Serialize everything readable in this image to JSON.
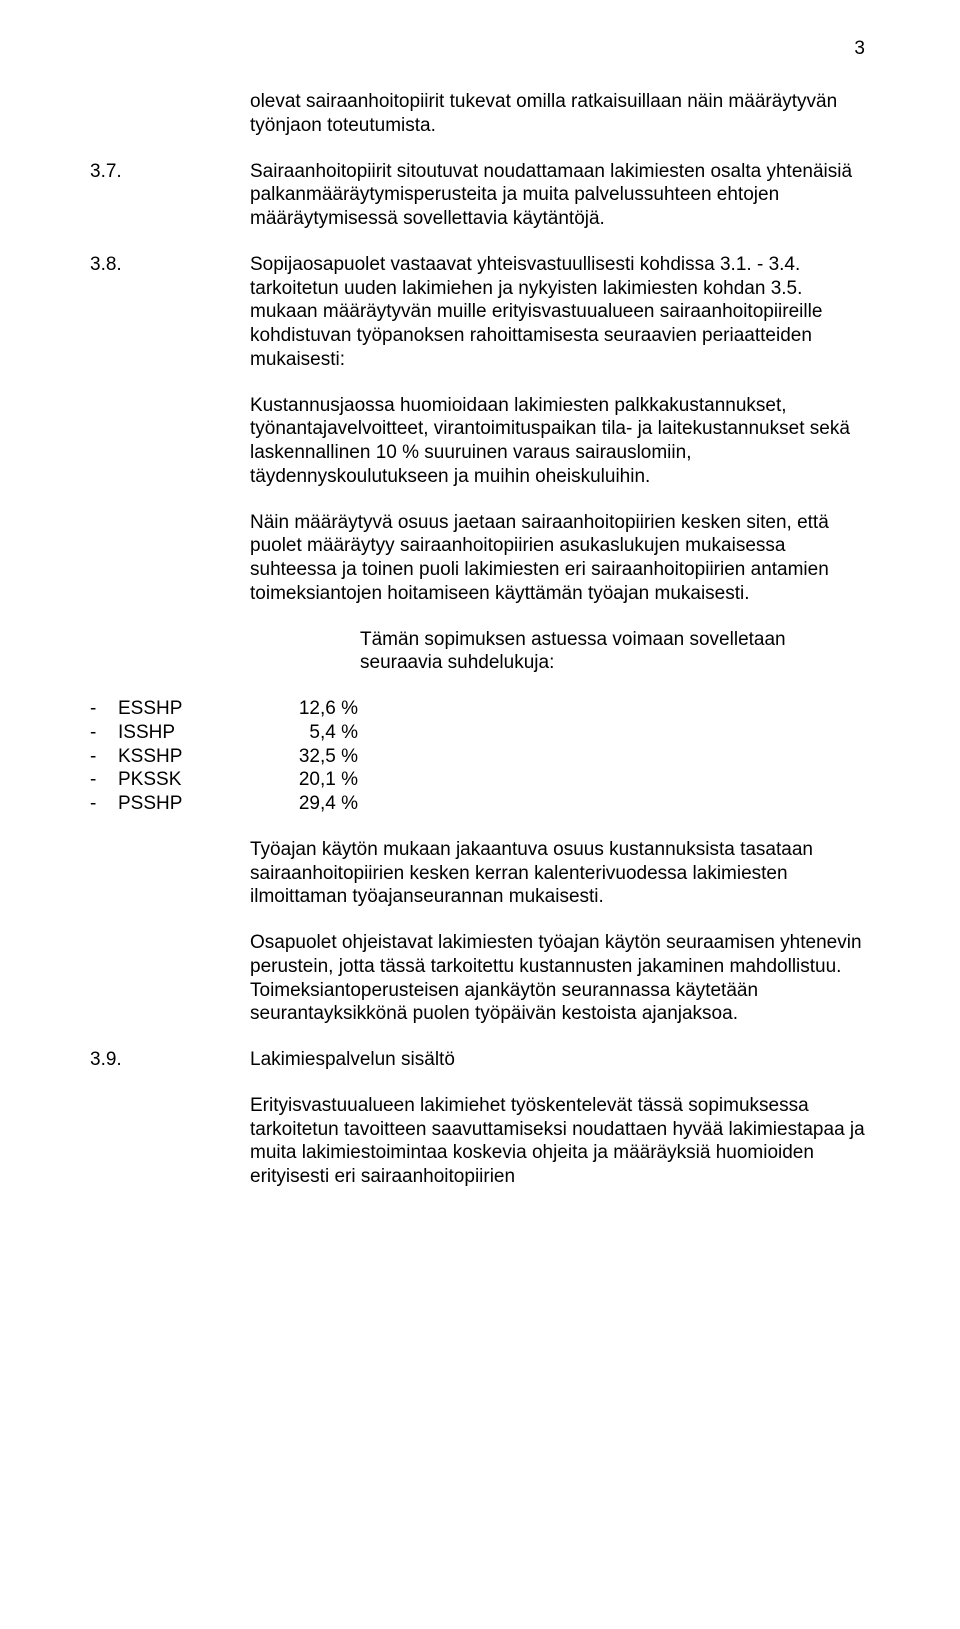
{
  "pageNumber": "3",
  "paragraphs": {
    "p1": "olevat sairaanhoitopiirit tukevat omilla ratkaisuillaan näin määräytyvän työnjaon toteutumista.",
    "p2_num": "3.7.",
    "p2": "Sairaanhoitopiirit sitoutuvat noudattamaan lakimiesten osalta yhtenäisiä palkanmääräytymisperusteita ja muita palvelussuhteen ehtojen määräytymisessä sovellettavia käytäntöjä.",
    "p3_num": "3.8.",
    "p3": "Sopijaosapuolet vastaavat yhteisvastuullisesti kohdissa 3.1. - 3.4. tarkoitetun uuden lakimiehen ja nykyisten lakimiesten kohdan 3.5. mukaan määräytyvän muille erityisvastuualueen sairaanhoitopiireille kohdistuvan työpanoksen rahoittamisesta seuraavien periaatteiden mukaisesti:",
    "p4": "Kustannusjaossa huomioidaan lakimiesten palkkakustannukset, työnantajavelvoitteet, virantoimituspaikan tila- ja laitekustannukset sekä laskennallinen 10 % suuruinen varaus sairauslomiin, täydennyskoulutukseen ja muihin oheiskuluihin.",
    "p5": "Näin määräytyvä osuus jaetaan sairaanhoitopiirien kesken siten, että puolet määräytyy sairaanhoitopiirien asukaslukujen mukaisessa suhteessa ja toinen puoli lakimiesten eri sairaanhoitopiirien antamien toimeksiantojen hoitamiseen käyttämän työajan mukaisesti.",
    "p6": "Tämän sopimuksen astuessa voimaan sovelletaan seuraavia suhdelukuja:",
    "p7": "Työajan käytön mukaan jakaantuva osuus kustannuksista tasataan sairaanhoitopiirien kesken kerran kalenterivuodessa lakimiesten ilmoittaman työajanseurannan mukaisesti.",
    "p8": "Osapuolet ohjeistavat lakimiesten työajan käytön seuraamisen yhtenevin perustein, jotta tässä tarkoitettu kustannusten jakaminen mahdollistuu. Toimeksiantoperusteisen ajankäytön seurannassa käytetään seurantayksikkönä puolen työpäivän kestoista ajanjaksoa.",
    "p9_num": "3.9.",
    "p9_title": "Lakimiespalvelun sisältö",
    "p10": "Erityisvastuualueen lakimiehet työskentelevät tässä sopimuksessa tarkoitetun tavoitteen saavuttamiseksi noudattaen hyvää lakimiestapaa ja muita lakimiestoimintaa koskevia ohjeita ja määräyksiä huomioiden erityisesti eri sairaanhoitopiirien"
  },
  "ratios": [
    {
      "label": "ESSHP",
      "value": "12,6 %"
    },
    {
      "label": "ISSHP",
      "value": "5,4 %"
    },
    {
      "label": "KSSHP",
      "value": "32,5 %"
    },
    {
      "label": "PKSSK",
      "value": "20,1 %"
    },
    {
      "label": "PSSHP",
      "value": "29,4 %"
    }
  ]
}
